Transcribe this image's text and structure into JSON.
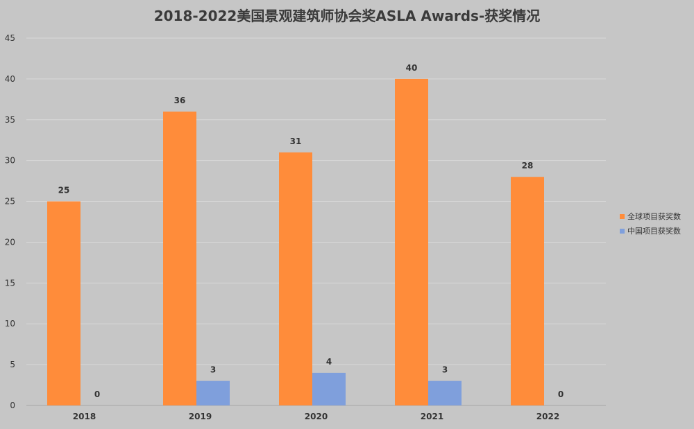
{
  "chart_data": {
    "type": "bar",
    "title": "2018-2022美国景观建筑师协会奖ASLA Awards-获奖情况",
    "categories": [
      "2018",
      "2019",
      "2020",
      "2021",
      "2022"
    ],
    "series": [
      {
        "name": "全球项目获奖数",
        "values": [
          25,
          36,
          31,
          40,
          28
        ],
        "color": "#ff8c3a"
      },
      {
        "name": "中国项目获奖数",
        "values": [
          0,
          3,
          4,
          3,
          0
        ],
        "color": "#7f9fdc"
      }
    ],
    "xlabel": "",
    "ylabel": "",
    "ylim": [
      0,
      45
    ],
    "yticks": [
      0,
      5,
      10,
      15,
      20,
      25,
      30,
      35,
      40,
      45
    ],
    "grid": true,
    "legend_position": "right",
    "data_labels": true
  }
}
